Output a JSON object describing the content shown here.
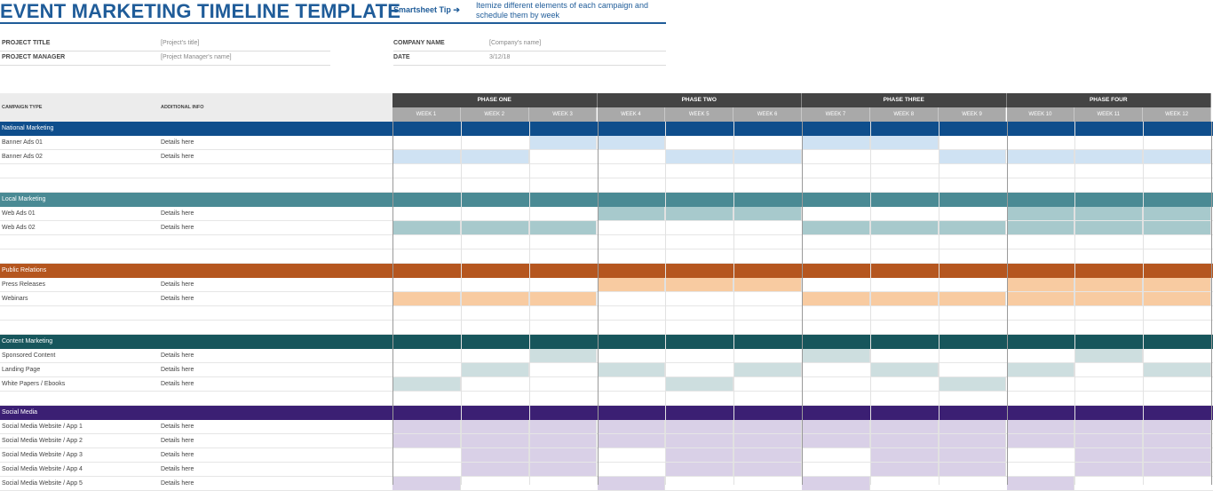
{
  "header": {
    "title": "EVENT MARKETING TIMELINE TEMPLATE",
    "tip_label": "Smartsheet Tip ➔",
    "tip_text": "Itemize different elements of each campaign and schedule them by week"
  },
  "project": {
    "title_label": "PROJECT TITLE",
    "title_value": "[Project's title]",
    "manager_label": "PROJECT MANAGER",
    "manager_value": "[Project Manager's name]",
    "company_label": "COMPANY NAME",
    "company_value": "[Company's name]",
    "date_label": "DATE",
    "date_value": "3/12/18"
  },
  "columns": {
    "campaign_type": "CAMPAIGN TYPE",
    "additional_info": "ADDITIONAL INFO"
  },
  "phases": [
    "PHASE ONE",
    "PHASE TWO",
    "PHASE THREE",
    "PHASE FOUR"
  ],
  "weeks": [
    "WEEK 1",
    "WEEK 2",
    "WEEK 3",
    "WEEK 4",
    "WEEK 5",
    "WEEK 6",
    "WEEK 7",
    "WEEK 8",
    "WEEK 9",
    "WEEK 10",
    "WEEK 11",
    "WEEK 12"
  ],
  "sections": [
    {
      "name": "National Marketing",
      "color": "#0f4e8c",
      "fill": "#cfe2f3",
      "rows": [
        {
          "label": "Banner Ads 01",
          "info": "Details here",
          "weeks": [
            3,
            4,
            7,
            8
          ]
        },
        {
          "label": "Banner Ads 02",
          "info": "Details here",
          "weeks": [
            1,
            2,
            5,
            6,
            9,
            10,
            11,
            12
          ]
        },
        {
          "label": "",
          "info": "",
          "weeks": []
        },
        {
          "label": "",
          "info": "",
          "weeks": []
        }
      ]
    },
    {
      "name": "Local Marketing",
      "color": "#4a8a94",
      "fill": "#a7c9cc",
      "rows": [
        {
          "label": "Web Ads 01",
          "info": "Details here",
          "weeks": [
            4,
            5,
            6,
            10,
            11,
            12
          ]
        },
        {
          "label": "Web Ads 02",
          "info": "Details here",
          "weeks": [
            1,
            2,
            3,
            7,
            8,
            9,
            10,
            11,
            12
          ]
        },
        {
          "label": "",
          "info": "",
          "weeks": []
        },
        {
          "label": "",
          "info": "",
          "weeks": []
        }
      ]
    },
    {
      "name": "Public Relations",
      "color": "#b5561f",
      "fill": "#f8cba1",
      "rows": [
        {
          "label": "Press Releases",
          "info": "Details here",
          "weeks": [
            4,
            5,
            6,
            10,
            11,
            12
          ]
        },
        {
          "label": "Webinars",
          "info": "Details here",
          "weeks": [
            1,
            2,
            3,
            7,
            8,
            9,
            10,
            11,
            12
          ]
        },
        {
          "label": "",
          "info": "",
          "weeks": []
        },
        {
          "label": "",
          "info": "",
          "weeks": []
        }
      ]
    },
    {
      "name": "Content Marketing",
      "color": "#17565c",
      "fill": "#cddedf",
      "rows": [
        {
          "label": "Sponsored Content",
          "info": "Details here",
          "weeks": [
            3,
            7,
            11
          ]
        },
        {
          "label": "Landing Page",
          "info": "Details here",
          "weeks": [
            2,
            4,
            6,
            8,
            10,
            12
          ]
        },
        {
          "label": "White Papers / Ebooks",
          "info": "Details here",
          "weeks": [
            1,
            5,
            9
          ]
        },
        {
          "label": "",
          "info": "",
          "weeks": []
        }
      ]
    },
    {
      "name": "Social Media",
      "color": "#3b1f73",
      "fill": "#d9d0e7",
      "rows": [
        {
          "label": "Social Media Website / App 1",
          "info": "Details here",
          "weeks": [
            1,
            2,
            3,
            4,
            5,
            6,
            7,
            8,
            9,
            10,
            11,
            12
          ]
        },
        {
          "label": "Social Media Website / App 2",
          "info": "Details here",
          "weeks": [
            1,
            2,
            3,
            4,
            5,
            6,
            7,
            8,
            9,
            10,
            11,
            12
          ]
        },
        {
          "label": "Social Media Website / App 3",
          "info": "Details here",
          "weeks": [
            2,
            3,
            5,
            6,
            8,
            9,
            11,
            12
          ]
        },
        {
          "label": "Social Media Website / App 4",
          "info": "Details here",
          "weeks": [
            2,
            3,
            5,
            6,
            8,
            9,
            11,
            12
          ]
        },
        {
          "label": "Social Media Website / App 5",
          "info": "Details here",
          "weeks": [
            1,
            4,
            7,
            10
          ]
        }
      ]
    }
  ]
}
